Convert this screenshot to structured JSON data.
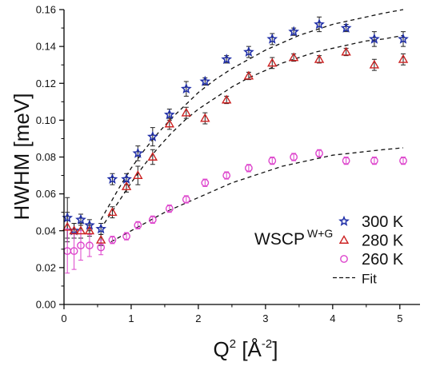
{
  "chart_data": {
    "type": "scatter",
    "xlabel": "Q",
    "xlabel_sup": "2",
    "xlabel_unit": " [Å",
    "xlabel_unit_sup": "-2",
    "xlabel_end": "]",
    "ylabel": "HWHM [meV]",
    "xlim": [
      0,
      5.3
    ],
    "ylim": [
      0.0,
      0.16
    ],
    "xticks": [
      0,
      1,
      2,
      3,
      4,
      5
    ],
    "xtick_labels": [
      "0",
      "1",
      "2",
      "3",
      "4",
      "5"
    ],
    "yticks": [
      0.0,
      0.02,
      0.04,
      0.06,
      0.08,
      0.1,
      0.12,
      0.14,
      0.16
    ],
    "ytick_labels": [
      "0.00",
      "0.02",
      "0.04",
      "0.06",
      "0.08",
      "0.10",
      "0.12",
      "0.14",
      "0.16"
    ],
    "grid": false,
    "legend_position": "bottom-right",
    "annotation": {
      "text": "WSCP",
      "sup": "W+G"
    },
    "series": [
      {
        "name": "300 K",
        "marker": "star",
        "color": "#1f2ea8",
        "points": [
          {
            "x": 0.05,
            "y": 0.047,
            "err": 0.011
          },
          {
            "x": 0.15,
            "y": 0.04,
            "err": 0.004
          },
          {
            "x": 0.25,
            "y": 0.046,
            "err": 0.003
          },
          {
            "x": 0.38,
            "y": 0.043,
            "err": 0.003
          },
          {
            "x": 0.55,
            "y": 0.041,
            "err": 0.003
          },
          {
            "x": 0.72,
            "y": 0.068,
            "err": 0.003
          },
          {
            "x": 0.93,
            "y": 0.068,
            "err": 0.003
          },
          {
            "x": 1.1,
            "y": 0.082,
            "err": 0.004
          },
          {
            "x": 1.32,
            "y": 0.091,
            "err": 0.005
          },
          {
            "x": 1.57,
            "y": 0.103,
            "err": 0.003
          },
          {
            "x": 1.82,
            "y": 0.117,
            "err": 0.004
          },
          {
            "x": 2.1,
            "y": 0.121,
            "err": 0.002
          },
          {
            "x": 2.42,
            "y": 0.133,
            "err": 0.002
          },
          {
            "x": 2.75,
            "y": 0.137,
            "err": 0.003
          },
          {
            "x": 3.1,
            "y": 0.144,
            "err": 0.003
          },
          {
            "x": 3.42,
            "y": 0.148,
            "err": 0.002
          },
          {
            "x": 3.8,
            "y": 0.152,
            "err": 0.004
          },
          {
            "x": 4.2,
            "y": 0.15,
            "err": 0.002
          },
          {
            "x": 4.62,
            "y": 0.144,
            "err": 0.004
          },
          {
            "x": 5.05,
            "y": 0.144,
            "err": 0.004
          }
        ]
      },
      {
        "name": "280 K",
        "marker": "triangle",
        "color": "#cc2222",
        "points": [
          {
            "x": 0.05,
            "y": 0.042,
            "err": 0.008
          },
          {
            "x": 0.15,
            "y": 0.04,
            "err": 0.004
          },
          {
            "x": 0.25,
            "y": 0.04,
            "err": 0.004
          },
          {
            "x": 0.38,
            "y": 0.04,
            "err": 0.003
          },
          {
            "x": 0.55,
            "y": 0.035,
            "err": 0.003
          },
          {
            "x": 0.72,
            "y": 0.05,
            "err": 0.003
          },
          {
            "x": 0.93,
            "y": 0.064,
            "err": 0.003
          },
          {
            "x": 1.1,
            "y": 0.07,
            "err": 0.005
          },
          {
            "x": 1.32,
            "y": 0.08,
            "err": 0.004
          },
          {
            "x": 1.57,
            "y": 0.098,
            "err": 0.003
          },
          {
            "x": 1.82,
            "y": 0.104,
            "err": 0.003
          },
          {
            "x": 2.1,
            "y": 0.101,
            "err": 0.003
          },
          {
            "x": 2.42,
            "y": 0.111,
            "err": 0.002
          },
          {
            "x": 2.75,
            "y": 0.124,
            "err": 0.002
          },
          {
            "x": 3.1,
            "y": 0.131,
            "err": 0.003
          },
          {
            "x": 3.42,
            "y": 0.134,
            "err": 0.002
          },
          {
            "x": 3.8,
            "y": 0.133,
            "err": 0.002
          },
          {
            "x": 4.2,
            "y": 0.137,
            "err": 0.002
          },
          {
            "x": 4.62,
            "y": 0.13,
            "err": 0.003
          },
          {
            "x": 5.05,
            "y": 0.133,
            "err": 0.003
          }
        ]
      },
      {
        "name": "260 K",
        "marker": "circle",
        "color": "#dd44cc",
        "points": [
          {
            "x": 0.05,
            "y": 0.029,
            "err": 0.012
          },
          {
            "x": 0.15,
            "y": 0.029,
            "err": 0.01
          },
          {
            "x": 0.25,
            "y": 0.032,
            "err": 0.008
          },
          {
            "x": 0.38,
            "y": 0.032,
            "err": 0.006
          },
          {
            "x": 0.55,
            "y": 0.031,
            "err": 0.004
          },
          {
            "x": 0.72,
            "y": 0.035,
            "err": 0.002
          },
          {
            "x": 0.93,
            "y": 0.037,
            "err": 0.002
          },
          {
            "x": 1.1,
            "y": 0.043,
            "err": 0.002
          },
          {
            "x": 1.32,
            "y": 0.046,
            "err": 0.002
          },
          {
            "x": 1.57,
            "y": 0.052,
            "err": 0.002
          },
          {
            "x": 1.82,
            "y": 0.057,
            "err": 0.002
          },
          {
            "x": 2.1,
            "y": 0.066,
            "err": 0.002
          },
          {
            "x": 2.42,
            "y": 0.07,
            "err": 0.002
          },
          {
            "x": 2.75,
            "y": 0.074,
            "err": 0.002
          },
          {
            "x": 3.1,
            "y": 0.078,
            "err": 0.002
          },
          {
            "x": 3.42,
            "y": 0.08,
            "err": 0.002
          },
          {
            "x": 3.8,
            "y": 0.082,
            "err": 0.002
          },
          {
            "x": 4.2,
            "y": 0.078,
            "err": 0.002
          },
          {
            "x": 4.62,
            "y": 0.078,
            "err": 0.002
          },
          {
            "x": 5.05,
            "y": 0.078,
            "err": 0.002
          }
        ]
      }
    ],
    "fits": [
      {
        "name": "Fit",
        "color": "#111111",
        "style": "dashed",
        "for": "300 K",
        "points": [
          [
            0.55,
            0.046
          ],
          [
            0.8,
            0.062
          ],
          [
            1.0,
            0.074
          ],
          [
            1.2,
            0.084
          ],
          [
            1.4,
            0.093
          ],
          [
            1.6,
            0.101
          ],
          [
            1.8,
            0.108
          ],
          [
            2.0,
            0.115
          ],
          [
            2.25,
            0.122
          ],
          [
            2.5,
            0.128
          ],
          [
            2.75,
            0.133
          ],
          [
            3.0,
            0.138
          ],
          [
            3.25,
            0.142
          ],
          [
            3.5,
            0.146
          ],
          [
            3.75,
            0.149
          ],
          [
            4.0,
            0.152
          ],
          [
            4.25,
            0.154
          ],
          [
            4.5,
            0.156
          ],
          [
            4.75,
            0.158
          ],
          [
            5.05,
            0.16
          ]
        ]
      },
      {
        "name": "Fit",
        "color": "#111111",
        "style": "dashed",
        "for": "280 K",
        "points": [
          [
            0.6,
            0.044
          ],
          [
            0.8,
            0.055
          ],
          [
            1.0,
            0.066
          ],
          [
            1.2,
            0.076
          ],
          [
            1.4,
            0.085
          ],
          [
            1.6,
            0.093
          ],
          [
            1.8,
            0.1
          ],
          [
            2.0,
            0.106
          ],
          [
            2.25,
            0.112
          ],
          [
            2.5,
            0.118
          ],
          [
            2.75,
            0.123
          ],
          [
            3.0,
            0.127
          ],
          [
            3.25,
            0.131
          ],
          [
            3.5,
            0.134
          ],
          [
            3.75,
            0.137
          ],
          [
            4.0,
            0.139
          ],
          [
            4.25,
            0.141
          ],
          [
            4.5,
            0.143
          ],
          [
            4.75,
            0.144
          ],
          [
            5.05,
            0.146
          ]
        ]
      },
      {
        "name": "Fit",
        "color": "#111111",
        "style": "dashed",
        "for": "260 K",
        "points": [
          [
            0.7,
            0.034
          ],
          [
            1.0,
            0.04
          ],
          [
            1.25,
            0.045
          ],
          [
            1.5,
            0.05
          ],
          [
            1.75,
            0.054
          ],
          [
            2.0,
            0.058
          ],
          [
            2.25,
            0.062
          ],
          [
            2.5,
            0.066
          ],
          [
            2.75,
            0.069
          ],
          [
            3.0,
            0.072
          ],
          [
            3.25,
            0.075
          ],
          [
            3.5,
            0.077
          ],
          [
            3.75,
            0.079
          ],
          [
            4.0,
            0.081
          ],
          [
            4.25,
            0.082
          ],
          [
            4.5,
            0.083
          ],
          [
            4.75,
            0.084
          ],
          [
            5.05,
            0.085
          ]
        ]
      }
    ],
    "legend": [
      {
        "label": "300 K",
        "marker": "star",
        "color": "#1f2ea8"
      },
      {
        "label": "280 K",
        "marker": "triangle",
        "color": "#cc2222"
      },
      {
        "label": "260 K",
        "marker": "circle",
        "color": "#dd44cc"
      },
      {
        "label": "Fit",
        "marker": "dash",
        "color": "#111111"
      }
    ]
  }
}
